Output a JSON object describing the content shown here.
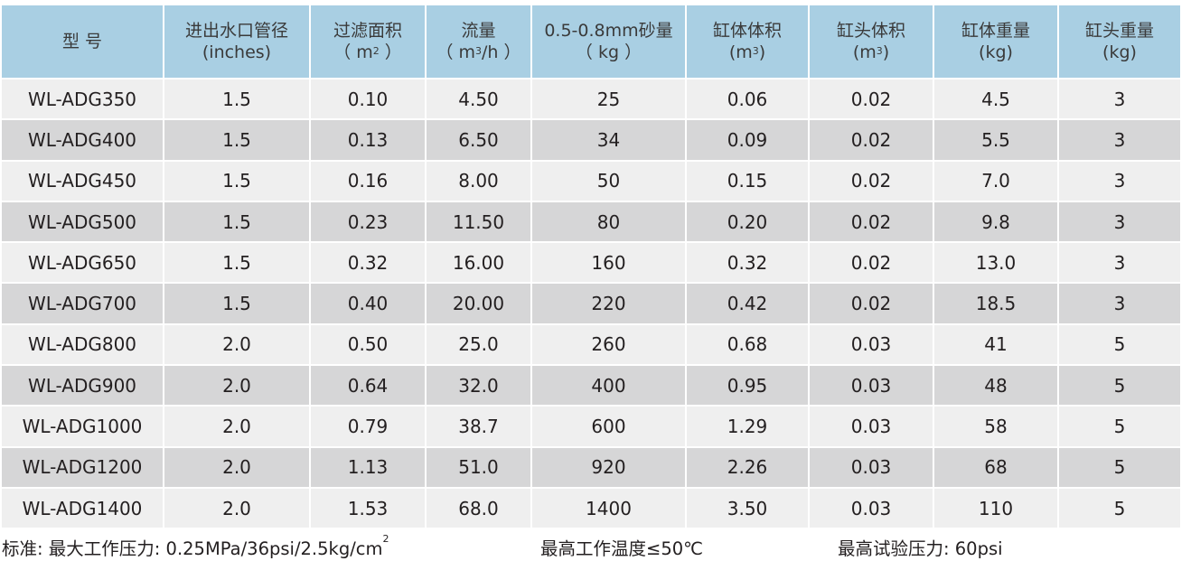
{
  "table": {
    "headers": [
      {
        "line1": "型  号",
        "line2": "",
        "sup": "",
        "line2_suffix": ""
      },
      {
        "line1": "进出水口管径",
        "line2": "(inches)",
        "sup": "",
        "line2_suffix": ""
      },
      {
        "line1": "过滤面积",
        "line2": "（ m",
        "sup": "2",
        "line2_suffix": " ）"
      },
      {
        "line1": "流量",
        "line2": "（ m",
        "sup": "3",
        "line2_suffix": "/h ）"
      },
      {
        "line1": "0.5-0.8mm砂量",
        "line2": "（ kg ）",
        "sup": "",
        "line2_suffix": ""
      },
      {
        "line1": "缸体体积",
        "line2": "(m",
        "sup": "3",
        "line2_suffix": ")"
      },
      {
        "line1": "缸头体积",
        "line2": "(m",
        "sup": "3",
        "line2_suffix": ")"
      },
      {
        "line1": "缸体重量",
        "line2": "(kg)",
        "sup": "",
        "line2_suffix": ""
      },
      {
        "line1": "缸头重量",
        "line2": "(kg)",
        "sup": "",
        "line2_suffix": ""
      }
    ],
    "rows": [
      [
        "WL-ADG350",
        "1.5",
        "0.10",
        "4.50",
        "25",
        "0.06",
        "0.02",
        "4.5",
        "3"
      ],
      [
        "WL-ADG400",
        "1.5",
        "0.13",
        "6.50",
        "34",
        "0.09",
        "0.02",
        "5.5",
        "3"
      ],
      [
        "WL-ADG450",
        "1.5",
        "0.16",
        "8.00",
        "50",
        "0.15",
        "0.02",
        "7.0",
        "3"
      ],
      [
        "WL-ADG500",
        "1.5",
        "0.23",
        "11.50",
        "80",
        "0.20",
        "0.02",
        "9.8",
        "3"
      ],
      [
        "WL-ADG650",
        "1.5",
        "0.32",
        "16.00",
        "160",
        "0.32",
        "0.02",
        "13.0",
        "3"
      ],
      [
        "WL-ADG700",
        "1.5",
        "0.40",
        "20.00",
        "220",
        "0.42",
        "0.02",
        "18.5",
        "3"
      ],
      [
        "WL-ADG800",
        "2.0",
        "0.50",
        "25.0",
        "260",
        "0.68",
        "0.03",
        "41",
        "5"
      ],
      [
        "WL-ADG900",
        "2.0",
        "0.64",
        "32.0",
        "400",
        "0.95",
        "0.03",
        "48",
        "5"
      ],
      [
        "WL-ADG1000",
        "2.0",
        "0.79",
        "38.7",
        "600",
        "1.29",
        "0.03",
        "58",
        "5"
      ],
      [
        "WL-ADG1200",
        "2.0",
        "1.13",
        "51.0",
        "920",
        "2.26",
        "0.03",
        "68",
        "5"
      ],
      [
        "WL-ADG1400",
        "2.0",
        "1.53",
        "68.0",
        "1400",
        "3.50",
        "0.03",
        "110",
        "5"
      ]
    ]
  },
  "footer": {
    "pressure": "标准: 最大工作压力: 0.25MPa/36psi/2.5kg/cm",
    "pressure_sup": "2",
    "temperature": "最高工作温度≤50℃",
    "test_pressure": "最高试验压力: 60psi"
  },
  "colors": {
    "header_bg": "#a9cfe3",
    "row_light": "#efefef",
    "row_dark": "#d6d6d7"
  }
}
